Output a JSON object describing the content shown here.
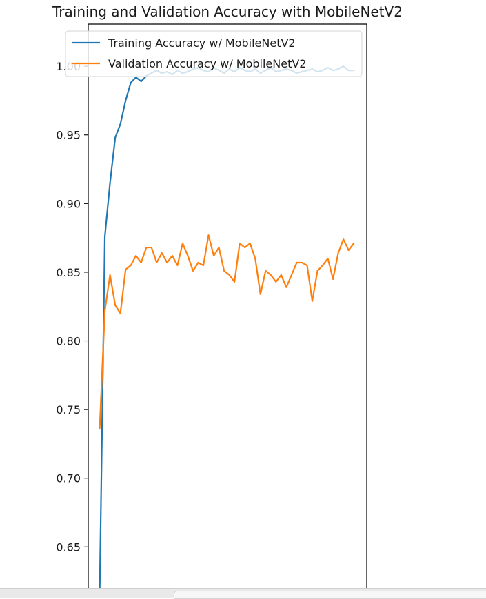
{
  "chart_data": {
    "type": "line",
    "title": "Training and Validation Accuracy with MobileNetV2",
    "xlabel": "",
    "ylabel": "",
    "x": [
      0,
      1,
      2,
      3,
      4,
      5,
      6,
      7,
      8,
      9,
      10,
      11,
      12,
      13,
      14,
      15,
      16,
      17,
      18,
      19,
      20,
      21,
      22,
      23,
      24,
      25,
      26,
      27,
      28,
      29,
      30,
      31,
      32,
      33,
      34,
      35,
      36,
      37,
      38,
      39,
      40,
      41,
      42,
      43,
      44,
      45,
      46,
      47,
      48,
      49
    ],
    "xlim": [
      -2.2,
      51.5
    ],
    "ylim": [
      0.6135,
      1.0307
    ],
    "yticks": [
      0.65,
      0.7,
      0.75,
      0.8,
      0.85,
      0.9,
      0.95,
      1.0
    ],
    "ytick_labels": [
      "0.65",
      "0.70",
      "0.75",
      "0.80",
      "0.85",
      "0.90",
      "0.95",
      "1.00"
    ],
    "legend_loc": "upper-left",
    "grid": false,
    "series": [
      {
        "name": "Training Accuracy w/ MobileNetV2",
        "color": "#1f77b4",
        "values": [
          0.615,
          0.876,
          0.915,
          0.948,
          0.958,
          0.975,
          0.988,
          0.992,
          0.989,
          0.993,
          0.995,
          0.997,
          0.995,
          0.996,
          0.994,
          0.997,
          0.995,
          0.996,
          0.998,
          0.999,
          0.997,
          0.996,
          0.999,
          0.997,
          0.995,
          0.998,
          0.996,
          0.999,
          0.997,
          0.996,
          0.998,
          0.995,
          0.997,
          0.999,
          0.996,
          0.997,
          0.998,
          0.997,
          0.995,
          0.996,
          0.997,
          0.998,
          0.996,
          0.997,
          0.999,
          0.997,
          0.998,
          1.0,
          0.997,
          0.997
        ]
      },
      {
        "name": "Validation Accuracy w/ MobileNetV2",
        "color": "#ff7f0e",
        "values": [
          0.736,
          0.822,
          0.848,
          0.826,
          0.82,
          0.852,
          0.855,
          0.862,
          0.857,
          0.868,
          0.868,
          0.857,
          0.864,
          0.857,
          0.862,
          0.855,
          0.871,
          0.862,
          0.851,
          0.857,
          0.855,
          0.877,
          0.862,
          0.868,
          0.851,
          0.848,
          0.843,
          0.871,
          0.868,
          0.871,
          0.86,
          0.834,
          0.851,
          0.848,
          0.843,
          0.848,
          0.839,
          0.848,
          0.857,
          0.857,
          0.855,
          0.829,
          0.851,
          0.855,
          0.86,
          0.845,
          0.864,
          0.874,
          0.866,
          0.871
        ]
      }
    ]
  }
}
